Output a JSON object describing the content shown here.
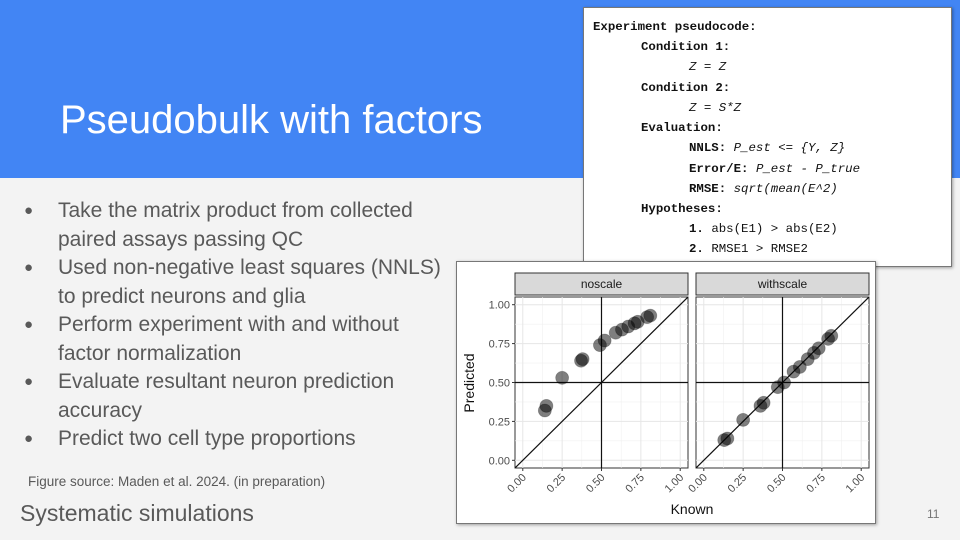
{
  "slide": {
    "title": "Pseudobulk with factors",
    "footer": "Systematic simulations",
    "page_number": "11",
    "figure_source": "Figure source: Maden et al. 2024. (in preparation)",
    "bullets": [
      "Take the matrix product from collected paired assays passing QC",
      "Used non-negative least squares (NNLS) to predict neurons and glia",
      "Perform experiment with and without factor normalization",
      "Evaluate resultant neuron prediction accuracy",
      "Predict two cell type proportions"
    ],
    "colors": {
      "banner": "#4285f4",
      "title_text": "#ffffff",
      "body_text": "#595959"
    }
  },
  "pseudocode": {
    "heading": "Experiment pseudocode:",
    "condition1_label": "Condition 1:",
    "condition1_expr": "Z = Z",
    "condition2_label": "Condition 2:",
    "condition2_expr": "Z = S*Z",
    "evaluation_label": "Evaluation:",
    "nnls_label": "NNLS:",
    "nnls_expr": "P_est <= {Y, Z}",
    "error_label": "Error/E:",
    "error_expr": "P_est - P_true",
    "rmse_label": "RMSE:",
    "rmse_expr": "sqrt(mean(E^2)",
    "hypotheses_label": "Hypotheses:",
    "hyp1_num": "1.",
    "hyp1_text": "abs(E1) > abs(E2)",
    "hyp2_num": "2.",
    "hyp2_text": "RMSE1 > RMSE2"
  },
  "chart_data": {
    "type": "scatter",
    "xlabel": "Known",
    "ylabel": "Predicted",
    "xlim": [
      0,
      1
    ],
    "ylim": [
      0,
      1
    ],
    "ticks": [
      "0.00",
      "0.25",
      "0.50",
      "0.75",
      "1.00"
    ],
    "tick_values": [
      0,
      0.25,
      0.5,
      0.75,
      1.0
    ],
    "reference_lines": [
      "y = x",
      "x = 0.5",
      "y = 0.5"
    ],
    "grid": true,
    "panels": [
      {
        "name": "noscale",
        "points": [
          {
            "x": 0.14,
            "y": 0.32
          },
          {
            "x": 0.15,
            "y": 0.35
          },
          {
            "x": 0.25,
            "y": 0.53
          },
          {
            "x": 0.37,
            "y": 0.64
          },
          {
            "x": 0.38,
            "y": 0.65
          },
          {
            "x": 0.49,
            "y": 0.74
          },
          {
            "x": 0.52,
            "y": 0.77
          },
          {
            "x": 0.59,
            "y": 0.82
          },
          {
            "x": 0.63,
            "y": 0.84
          },
          {
            "x": 0.67,
            "y": 0.86
          },
          {
            "x": 0.71,
            "y": 0.88
          },
          {
            "x": 0.73,
            "y": 0.89
          },
          {
            "x": 0.79,
            "y": 0.92
          },
          {
            "x": 0.81,
            "y": 0.93
          }
        ]
      },
      {
        "name": "withscale",
        "points": [
          {
            "x": 0.13,
            "y": 0.13
          },
          {
            "x": 0.15,
            "y": 0.14
          },
          {
            "x": 0.25,
            "y": 0.26
          },
          {
            "x": 0.36,
            "y": 0.35
          },
          {
            "x": 0.38,
            "y": 0.37
          },
          {
            "x": 0.47,
            "y": 0.47
          },
          {
            "x": 0.51,
            "y": 0.5
          },
          {
            "x": 0.57,
            "y": 0.57
          },
          {
            "x": 0.61,
            "y": 0.6
          },
          {
            "x": 0.66,
            "y": 0.65
          },
          {
            "x": 0.7,
            "y": 0.69
          },
          {
            "x": 0.73,
            "y": 0.72
          },
          {
            "x": 0.79,
            "y": 0.78
          },
          {
            "x": 0.81,
            "y": 0.8
          }
        ]
      }
    ]
  }
}
